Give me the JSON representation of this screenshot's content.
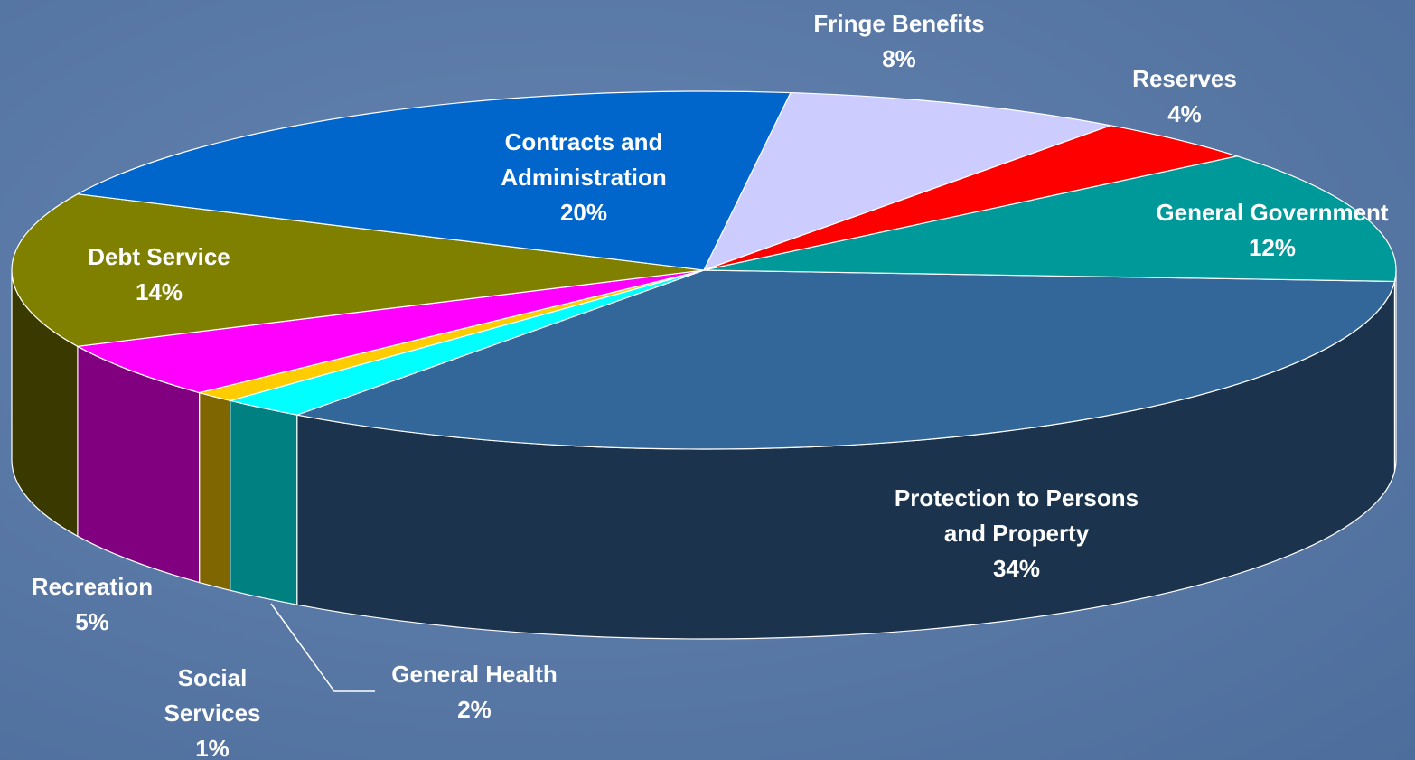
{
  "chart_data": {
    "type": "pie3d",
    "categories": [
      "Protection to Persons and Property",
      "General Health",
      "Social Services",
      "Recreation",
      "Debt Service",
      "Contracts and Administration",
      "Fringe Benefits",
      "Reserves",
      "General Government"
    ],
    "values": [
      34,
      2,
      1,
      5,
      14,
      20,
      8,
      4,
      12
    ],
    "value_labels": [
      "34%",
      "2%",
      "1%",
      "5%",
      "14%",
      "20%",
      "8%",
      "4%",
      "12%"
    ],
    "colors": [
      "#336699",
      "#00ffff",
      "#ffcc00",
      "#ff00ff",
      "#808000",
      "#0066cc",
      "#ccccff",
      "#ff0000",
      "#009999"
    ],
    "side_colors": [
      "#1b334d",
      "#008080",
      "#806600",
      "#800080",
      "#3a3a00",
      "#00336a",
      "#66667f",
      "#800000",
      "#004c4c"
    ]
  }
}
